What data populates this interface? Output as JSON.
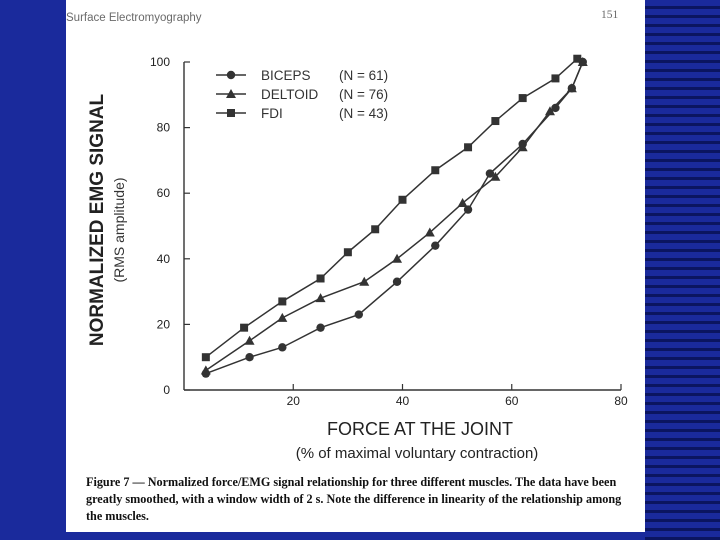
{
  "header": {
    "left": "Surface Electromyography",
    "right": "151"
  },
  "caption": {
    "lead": "Figure 7 — Normalized force/EMG signal relationship for three different muscles.",
    "body": " The data have been greatly smoothed, with a window width of 2 s. Note the difference in linearity of the relationship among the muscles."
  },
  "colors": {
    "background": "#1a2a9c",
    "stripe": "#0b1560",
    "page": "#ffffff",
    "ink": "#333333"
  },
  "chart_data": {
    "type": "line",
    "title": "",
    "ylabel": "NORMALIZED EMG SIGNAL",
    "ylabel_sub": "(RMS amplitude)",
    "xlabel": "FORCE AT THE JOINT",
    "xlabel_sub": "(% of maximal voluntary contraction)",
    "xlim": [
      0,
      80
    ],
    "ylim": [
      0,
      100
    ],
    "xticks": [
      20,
      40,
      60,
      80
    ],
    "yticks": [
      0,
      20,
      40,
      60,
      80,
      100
    ],
    "grid": false,
    "legend_position": "top-left",
    "series": [
      {
        "name": "BICEPS",
        "n_label": "(N = 61)",
        "marker": "circle",
        "x": [
          4,
          12,
          18,
          25,
          32,
          39,
          46,
          52,
          56,
          62,
          68,
          71,
          73
        ],
        "y": [
          5,
          10,
          13,
          19,
          23,
          33,
          44,
          55,
          66,
          75,
          86,
          92,
          100
        ]
      },
      {
        "name": "DELTOID",
        "n_label": "(N = 76)",
        "marker": "triangle",
        "x": [
          4,
          12,
          18,
          25,
          33,
          39,
          45,
          51,
          57,
          62,
          67,
          71,
          73
        ],
        "y": [
          6,
          15,
          22,
          28,
          33,
          40,
          48,
          57,
          65,
          74,
          85,
          92,
          100
        ]
      },
      {
        "name": "FDI",
        "n_label": "(N = 43)",
        "marker": "square",
        "x": [
          4,
          11,
          18,
          25,
          30,
          35,
          40,
          46,
          52,
          57,
          62,
          68,
          72
        ],
        "y": [
          10,
          19,
          27,
          34,
          42,
          49,
          58,
          67,
          74,
          82,
          89,
          95,
          101
        ]
      }
    ]
  }
}
